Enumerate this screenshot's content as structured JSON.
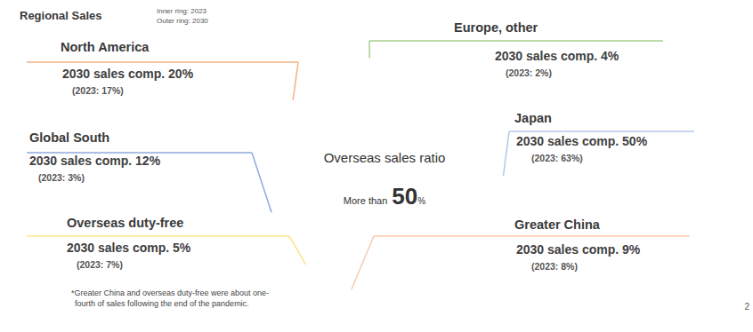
{
  "chart_data": {
    "type": "pie",
    "title": "Regional Sales",
    "categories": [
      "Japan",
      "Greater China",
      "Overseas duty-free",
      "Global South",
      "North America",
      "Europe, other"
    ],
    "series": [
      {
        "name": "Inner ring: 2023",
        "values": [
          63,
          8,
          7,
          3,
          17,
          2
        ],
        "value_labels": [
          "(2023: 63%)",
          "(2023: 8%)",
          "(2023: 7%)",
          "(2023: 3%)",
          "(2023: 17%)",
          "(2023: 2%)"
        ],
        "colors": [
          "#b4c7e7",
          "#fbd9c4",
          "#ffe9a6",
          "#8faadc",
          "#f4b183",
          "#a9d18e"
        ]
      },
      {
        "name": "Outer ring: 2030",
        "values": [
          50,
          9,
          5,
          12,
          20,
          4
        ],
        "value_labels": [
          "2030 sales comp. 50%",
          "2030 sales comp. 9%",
          "2030 sales comp. 5%",
          "2030 sales comp. 12%",
          "2030 sales comp. 20%",
          "2030 sales comp. 4%"
        ],
        "colors": [
          "#b4c7e7",
          "#f8cbad",
          "#ffe38a",
          "#8faadc",
          "#f4b183",
          "#a9d18e"
        ]
      }
    ],
    "data_labels": true,
    "annotations": {
      "center_title": "Overseas sales ratio",
      "center_prefix": "More than",
      "center_value": "50",
      "center_suffix": "%",
      "footnote": [
        "*Greater China and overseas duty-free were about one-",
        "fourth of sales following the end of the pandemic."
      ],
      "page": "2"
    }
  }
}
